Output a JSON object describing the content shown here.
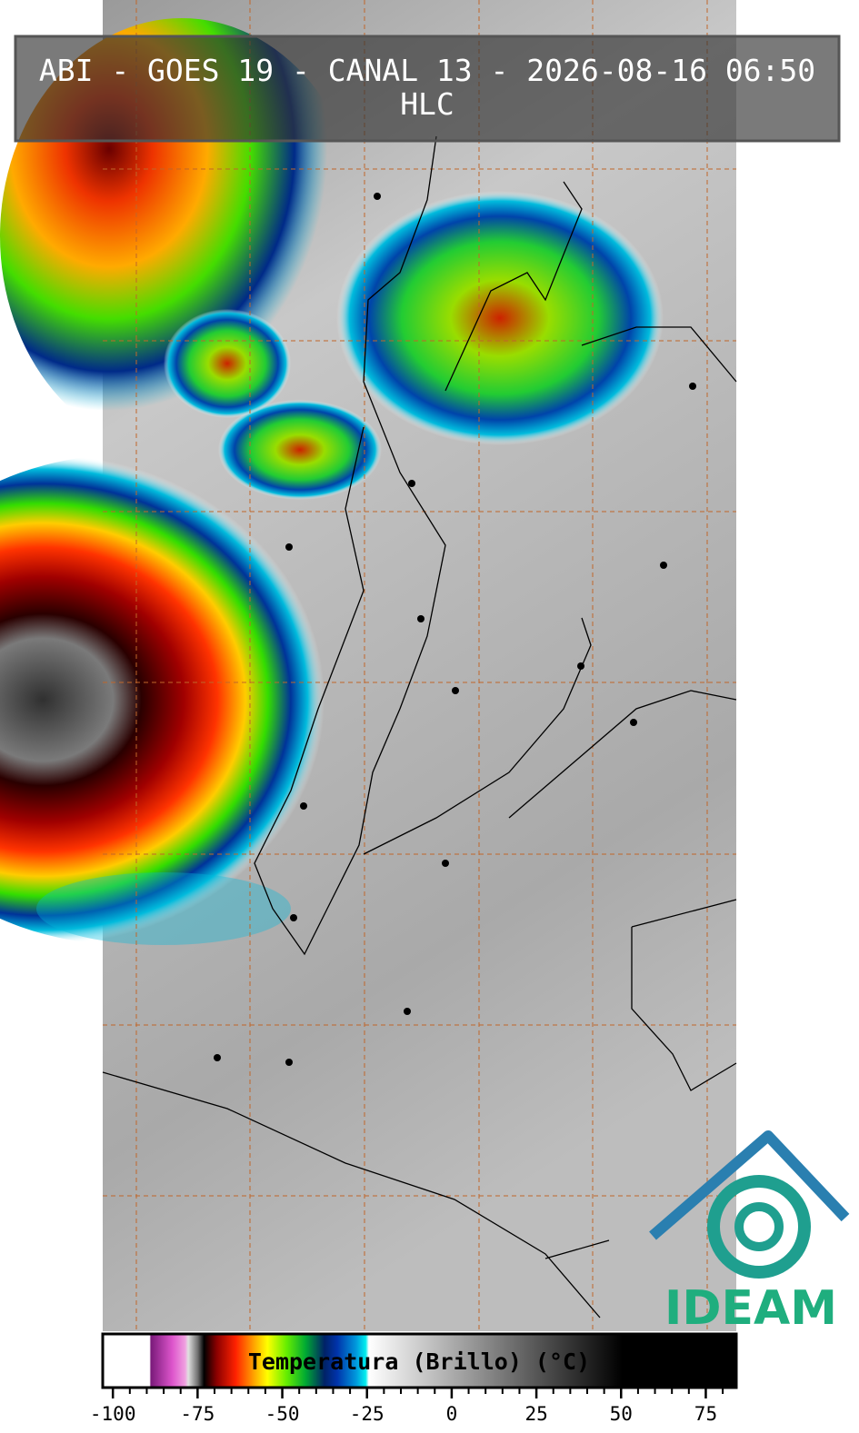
{
  "header": {
    "title": "ABI - GOES 19 - CANAL 13 - 2026-08-16 06:50",
    "subtitle": "HLC"
  },
  "colorbar": {
    "label": "Temperatura (Brillo) (°C)",
    "xlim": [
      -103,
      84
    ],
    "xticks": [
      -100,
      -75,
      -50,
      -25,
      0,
      25,
      50,
      75
    ],
    "minor_xticks": [
      -95,
      -90,
      -85,
      -80,
      -70,
      -65,
      -60,
      -55,
      -45,
      -40,
      -35,
      -30,
      -20,
      -15,
      -10,
      -5,
      5,
      10,
      15,
      20,
      30,
      35,
      40,
      45,
      55,
      60,
      65,
      70,
      80
    ]
  },
  "logo": {
    "text": "IDEAM"
  }
}
